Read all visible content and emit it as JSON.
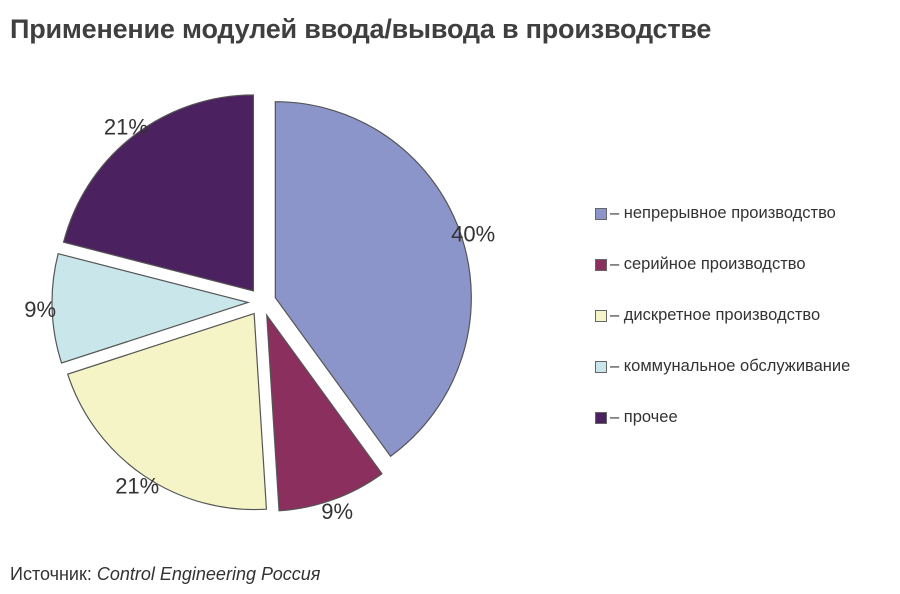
{
  "title": "Применение модулей ввода/вывода в производстве",
  "chart_data": {
    "type": "pie",
    "exploded": true,
    "slices": [
      {
        "name": "непрерывное производство",
        "value": 40,
        "label": "40%",
        "color": "#8c95c9"
      },
      {
        "name": "серийное производство",
        "value": 9,
        "label": "9%",
        "color": "#8b2f5f"
      },
      {
        "name": "дискретное производство",
        "value": 21,
        "label": "21%",
        "color": "#f4f4c6"
      },
      {
        "name": "коммунальное обслуживание",
        "value": 9,
        "label": "9%",
        "color": "#c9e7ea"
      },
      {
        "name": "прочее",
        "value": 21,
        "label": "21%",
        "color": "#4c2160"
      }
    ],
    "legend": {
      "placement": "right",
      "prefix": "– "
    }
  },
  "source": {
    "prefix": "Источник: ",
    "name": "Control Engineering Россия"
  }
}
